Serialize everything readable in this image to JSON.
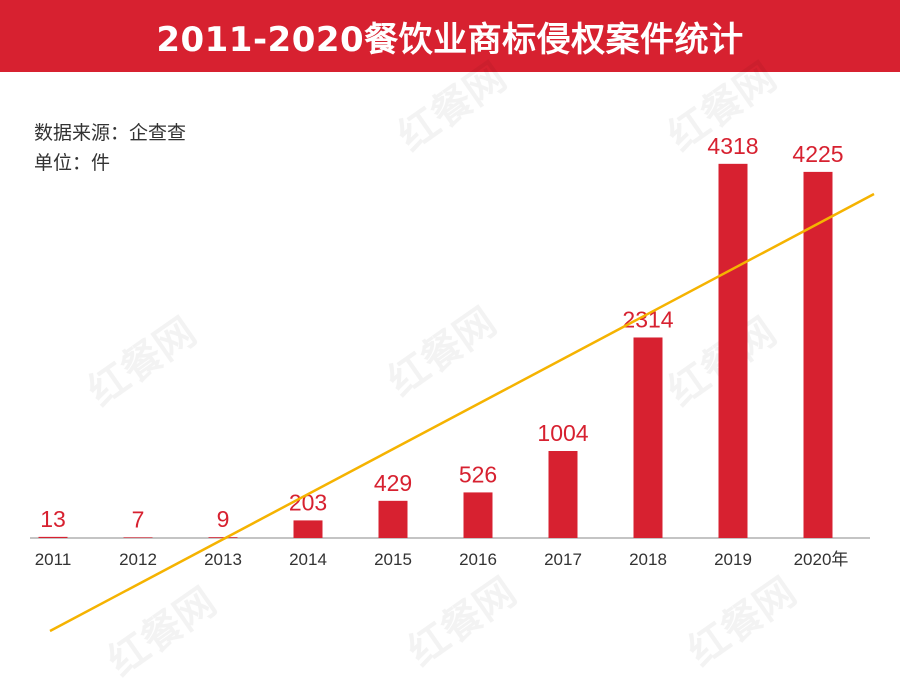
{
  "header": {
    "title": "2011-2020餐饮业商标侵权案件统计"
  },
  "meta": {
    "source": "数据来源：企查查",
    "unit": "单位：件"
  },
  "watermark": "红餐网",
  "colors": {
    "banner": "#d72130",
    "bar": "#d72130",
    "label": "#d72130",
    "trend": "#f5b301",
    "axis": "#b0b0b0",
    "tick": "#333333"
  },
  "chart_data": {
    "type": "bar",
    "title": "2011-2020餐饮业商标侵权案件统计",
    "xlabel": "",
    "ylabel": "件",
    "categories": [
      "2011",
      "2012",
      "2013",
      "2014",
      "2015",
      "2016",
      "2017",
      "2018",
      "2019",
      "2020年"
    ],
    "values": [
      13,
      7,
      9,
      203,
      429,
      526,
      1004,
      2314,
      4318,
      4225
    ],
    "value_labels": [
      "13",
      "7",
      "9",
      "203",
      "429",
      "526",
      "1004",
      "2314",
      "4318",
      "4225"
    ],
    "ylim": [
      0,
      4600
    ],
    "grid": false,
    "trendline": {
      "type": "linear",
      "color": "#f5b301"
    }
  }
}
